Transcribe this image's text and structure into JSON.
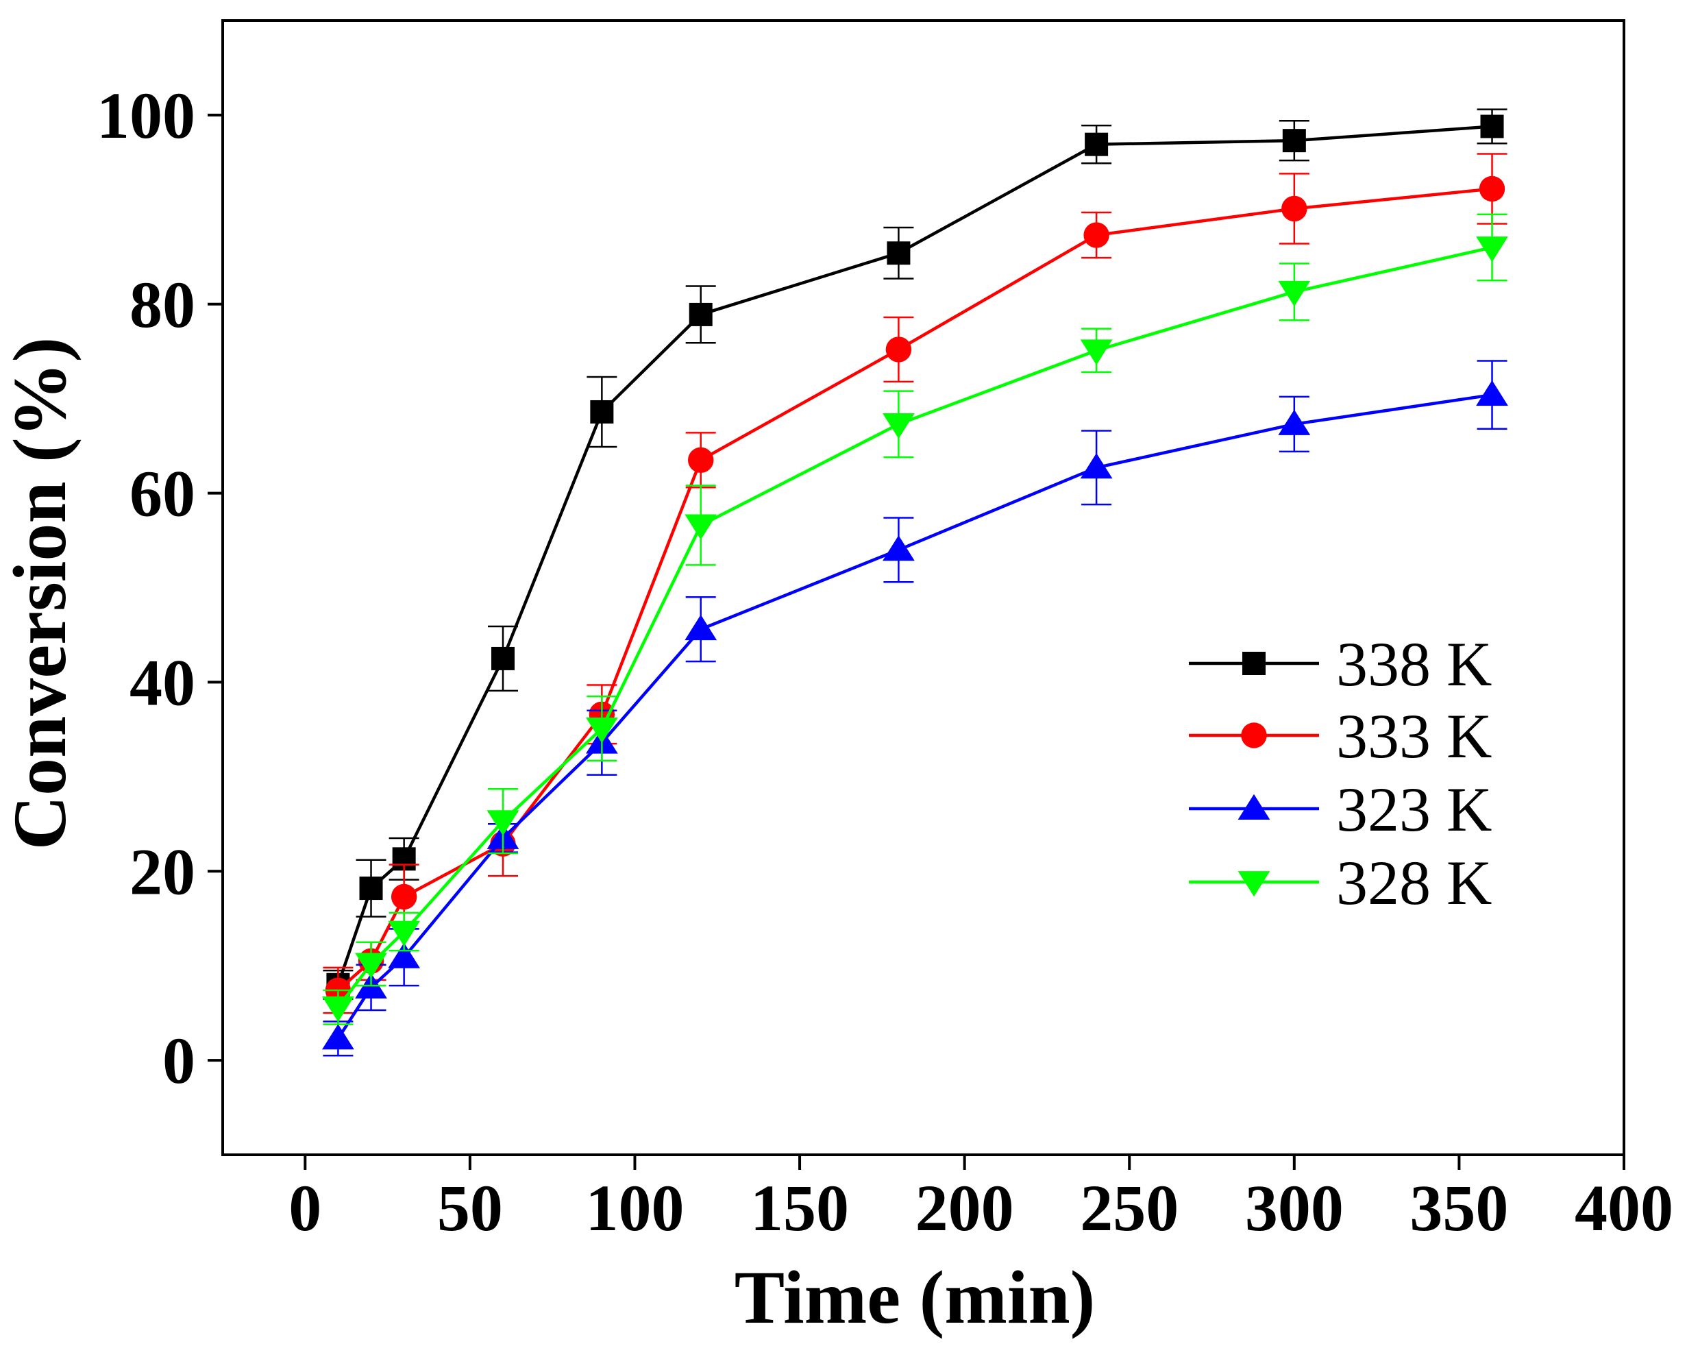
{
  "chart_data": {
    "type": "line",
    "title": "",
    "xlabel": "Time (min)",
    "ylabel": "Conversion (%)",
    "xlim": [
      -25,
      400
    ],
    "ylim": [
      -10,
      110
    ],
    "xticks": [
      0,
      50,
      100,
      150,
      200,
      250,
      300,
      350,
      400
    ],
    "yticks": [
      0,
      20,
      40,
      60,
      80,
      100
    ],
    "xtick_labels": [
      "0",
      "50",
      "100",
      "150",
      "200",
      "250",
      "300",
      "350",
      "400"
    ],
    "ytick_labels": [
      "0",
      "20",
      "40",
      "60",
      "80",
      "100"
    ],
    "grid": false,
    "legend_position": "right",
    "x": [
      10,
      20,
      30,
      60,
      90,
      120,
      180,
      240,
      300,
      360
    ],
    "series": [
      {
        "name": "338 K",
        "color": "#000000",
        "marker": "square",
        "values": [
          8,
          18.2,
          21.3,
          42.5,
          68.6,
          78.9,
          85.4,
          96.9,
          97.3,
          98.8
        ],
        "errors": [
          1.5,
          3.0,
          2.2,
          3.4,
          3.7,
          3.0,
          2.7,
          2.0,
          2.1,
          1.8
        ]
      },
      {
        "name": "333 K",
        "color": "#ff0000",
        "marker": "circle",
        "values": [
          7.4,
          10.5,
          17.3,
          22.9,
          36.6,
          63.5,
          75.2,
          87.3,
          90.1,
          92.2
        ],
        "errors": [
          2.4,
          2.0,
          3.4,
          3.4,
          3.1,
          2.9,
          3.4,
          2.4,
          3.7,
          3.7
        ]
      },
      {
        "name": "323 K",
        "color": "#0000ff",
        "marker": "triangle-up",
        "values": [
          2.3,
          7.7,
          10.9,
          23.5,
          33.6,
          45.6,
          54.0,
          62.7,
          67.3,
          70.4
        ],
        "errors": [
          1.8,
          2.4,
          3.0,
          1.5,
          3.4,
          3.4,
          3.4,
          3.9,
          2.9,
          3.6
        ]
      },
      {
        "name": "328 K",
        "color": "#00ff00",
        "marker": "triangle-down",
        "values": [
          5.6,
          10.2,
          13.6,
          25.3,
          35.1,
          56.6,
          67.3,
          75.1,
          81.3,
          86.0
        ],
        "errors": [
          1.8,
          2.3,
          2.0,
          3.4,
          3.4,
          4.2,
          3.5,
          2.3,
          3.0,
          3.5
        ]
      }
    ]
  }
}
